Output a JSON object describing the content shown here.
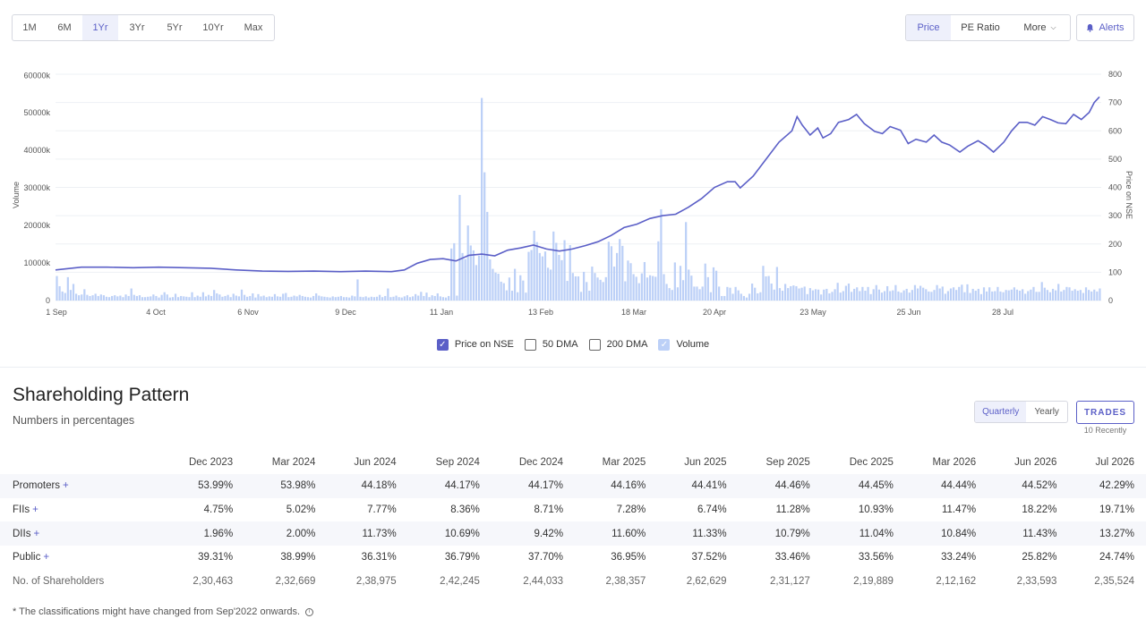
{
  "range_buttons": [
    "1M",
    "6M",
    "1Yr",
    "3Yr",
    "5Yr",
    "10Yr",
    "Max"
  ],
  "active_range": "1Yr",
  "view_buttons": {
    "price": "Price",
    "pe_ratio": "PE Ratio",
    "more": "More"
  },
  "alerts_label": "Alerts",
  "legend": {
    "price": "Price on NSE",
    "dma50": "50 DMA",
    "dma200": "200 DMA",
    "volume": "Volume"
  },
  "colors": {
    "accent": "#5b5fc7",
    "price_line": "#5b5fc7",
    "volume_bar": "#bcd0f7"
  },
  "chart_data": {
    "type": "line",
    "ylabel_left": "Volume",
    "ylabel_right": "Price on NSE",
    "left_ticks": [
      "0",
      "10000k",
      "20000k",
      "30000k",
      "40000k",
      "50000k",
      "60000k"
    ],
    "right_ticks": [
      "0",
      "100",
      "200",
      "300",
      "400",
      "500",
      "600",
      "700",
      "800"
    ],
    "x_ticks": [
      "1 Sep",
      "4 Oct",
      "6 Nov",
      "9 Dec",
      "11 Jan",
      "13 Feb",
      "18 Mar",
      "20 Apr",
      "23 May",
      "25 Jun",
      "28 Jul"
    ],
    "ylim_left": [
      0,
      60000
    ],
    "ylim_right": [
      0,
      800
    ],
    "grid": true,
    "price_series": {
      "name": "Price on NSE",
      "points": [
        [
          0,
          108
        ],
        [
          10,
          118
        ],
        [
          20,
          118
        ],
        [
          30,
          116
        ],
        [
          40,
          118
        ],
        [
          50,
          116
        ],
        [
          60,
          114
        ],
        [
          70,
          108
        ],
        [
          80,
          104
        ],
        [
          90,
          103
        ],
        [
          100,
          104
        ],
        [
          110,
          102
        ],
        [
          120,
          104
        ],
        [
          130,
          102
        ],
        [
          135,
          108
        ],
        [
          140,
          132
        ],
        [
          145,
          145
        ],
        [
          150,
          148
        ],
        [
          155,
          140
        ],
        [
          160,
          160
        ],
        [
          165,
          164
        ],
        [
          170,
          158
        ],
        [
          175,
          178
        ],
        [
          180,
          186
        ],
        [
          185,
          196
        ],
        [
          190,
          182
        ],
        [
          195,
          175
        ],
        [
          200,
          182
        ],
        [
          205,
          194
        ],
        [
          210,
          208
        ],
        [
          215,
          230
        ],
        [
          220,
          258
        ],
        [
          225,
          270
        ],
        [
          230,
          290
        ],
        [
          235,
          300
        ],
        [
          240,
          305
        ],
        [
          245,
          330
        ],
        [
          250,
          360
        ],
        [
          255,
          400
        ],
        [
          260,
          420
        ],
        [
          263,
          420
        ],
        [
          265,
          398
        ],
        [
          270,
          440
        ],
        [
          275,
          500
        ],
        [
          280,
          560
        ],
        [
          285,
          600
        ],
        [
          287,
          650
        ],
        [
          289,
          620
        ],
        [
          292,
          585
        ],
        [
          295,
          610
        ],
        [
          297,
          575
        ],
        [
          300,
          590
        ],
        [
          303,
          630
        ],
        [
          307,
          640
        ],
        [
          310,
          658
        ],
        [
          313,
          625
        ],
        [
          317,
          598
        ],
        [
          320,
          590
        ],
        [
          323,
          615
        ],
        [
          327,
          602
        ],
        [
          330,
          555
        ],
        [
          333,
          570
        ],
        [
          337,
          560
        ],
        [
          340,
          585
        ],
        [
          343,
          560
        ],
        [
          346,
          550
        ],
        [
          350,
          525
        ],
        [
          353,
          545
        ],
        [
          357,
          565
        ],
        [
          360,
          548
        ],
        [
          363,
          525
        ],
        [
          367,
          560
        ],
        [
          370,
          600
        ],
        [
          373,
          630
        ],
        [
          376,
          630
        ],
        [
          379,
          620
        ],
        [
          382,
          650
        ],
        [
          385,
          640
        ],
        [
          388,
          628
        ],
        [
          391,
          625
        ],
        [
          394,
          658
        ],
        [
          397,
          640
        ],
        [
          400,
          665
        ],
        [
          402,
          700
        ],
        [
          404,
          720
        ]
      ],
      "date_range": [
        "1 Sep",
        "28 Jul"
      ],
      "note_on_points": "x = trading-day index along the 1Yr window; y = price in INR"
    },
    "volume_series": {
      "name": "Volume",
      "unit": "k",
      "values": [
        6500,
        3800,
        2400,
        2000,
        6200,
        2800,
        4400,
        1800,
        1400,
        1600,
        3000,
        1500,
        1200,
        1400,
        1800,
        1200,
        1600,
        1400,
        1000,
        900,
        1200,
        1400,
        1100,
        1300,
        900,
        1600,
        1200,
        3200,
        1500,
        1200,
        1400,
        900,
        900,
        1000,
        1100,
        1600,
        1200,
        800,
        1500,
        2200,
        1600,
        800,
        900,
        1800,
        900,
        1200,
        1100,
        1000,
        900,
        2200,
        900,
        1300,
        1000,
        2200,
        1100,
        1500,
        1200,
        2800,
        1900,
        1600,
        1000,
        1200,
        1500,
        900,
        1800,
        1300,
        1100,
        2900,
        1500,
        1000,
        1200,
        1900,
        800,
        1700,
        1100,
        1300,
        900,
        1100,
        1000,
        1700,
        1100,
        1000,
        1800,
        2000,
        900,
        1000,
        1300,
        1100,
        1500,
        1200,
        1000,
        900,
        800,
        1200,
        1900,
        1300,
        1100,
        1000,
        900,
        800,
        1100,
        900,
        1000,
        1200,
        900,
        900,
        800,
        1300,
        1100,
        5600,
        1000,
        900,
        1100,
        800,
        1000,
        900,
        1000,
        1500,
        900,
        1200,
        3200,
        900,
        1000,
        1300,
        900,
        800,
        1100,
        1400,
        900,
        1100,
        1700,
        1300,
        2300,
        1200,
        2100,
        900,
        1400,
        1200,
        1900,
        1100,
        900,
        800,
        1200,
        13800,
        15200,
        1300,
        28000,
        12600,
        11000,
        19900,
        14600,
        13300,
        9400,
        11900,
        53700,
        34000,
        23500,
        10900,
        8400,
        7400,
        7100,
        5000,
        4600,
        2700,
        6100,
        2600,
        8400,
        2200,
        6700,
        5300,
        2100,
        12900,
        13400,
        18500,
        15500,
        12600,
        11700,
        13000,
        8700,
        8200,
        18300,
        15300,
        12100,
        10700,
        16000,
        5200,
        14700,
        7300,
        6400,
        6400,
        2300,
        7600,
        4900,
        2600,
        9000,
        7300,
        6100,
        5500,
        4900,
        6200,
        15600,
        14400,
        9000,
        12600,
        16300,
        14500,
        5100,
        10600,
        9900,
        7000,
        6300,
        4600,
        7200,
        10200,
        6100,
        6700,
        6500,
        6300,
        15700,
        24200,
        7000,
        4400,
        3300,
        2800,
        10100,
        3500,
        9200,
        5400,
        20800,
        8200,
        6600,
        3700,
        3700,
        3000,
        3700,
        9800,
        6200,
        2200,
        8800,
        7900,
        3700,
        1200,
        1200,
        3600,
        3400,
        1800,
        3600,
        2700,
        1800,
        1200,
        800,
        1800,
        4500,
        3400,
        1900,
        2200,
        9200,
        6400,
        6500,
        4500,
        2900,
        8900,
        3300,
        2600,
        4400,
        3300,
        3800,
        4000,
        3800,
        3200,
        3400,
        3700,
        1700,
        3300,
        2700,
        3000,
        2900,
        1600,
        2900,
        3100,
        1900,
        2300,
        3000,
        4700,
        2100,
        2500,
        3900,
        4500,
        2300,
        3100,
        3500,
        2500,
        3600,
        2600,
        3600,
        1700,
        3000,
        4100,
        2900,
        2100,
        2500,
        3800,
        2500,
        2700,
        4100,
        2400,
        2100,
        2700,
        3100,
        2100,
        2800,
        4100,
        3200,
        3900,
        3400,
        3000,
        2400,
        2300,
        2800,
        4100,
        3200,
        3700,
        1800,
        2500,
        3200,
        3500,
        2800,
        3600,
        4200,
        2200,
        4300,
        2000,
        3100,
        2600,
        3100,
        1700,
        3500,
        2400,
        3500,
        2400,
        2500,
        3600,
        2400,
        2200,
        2800,
        2700,
        2900,
        3500,
        2900,
        2600,
        3000,
        1800,
        2500,
        2900,
        3600,
        2300,
        2300,
        4900,
        3400,
        2800,
        2200,
        3100,
        2700,
        4400,
        2400,
        2800,
        3600,
        3500,
        2600,
        3000,
        2600,
        2800,
        2000,
        3500,
        2800,
        2400,
        2900,
        2400,
        3200
      ]
    }
  },
  "shareholding": {
    "title": "Shareholding Pattern",
    "subtitle": "Numbers in percentages",
    "toggle": [
      "Quarterly",
      "Yearly"
    ],
    "active_toggle": "Quarterly",
    "trades_label": "TRADES",
    "trades_sub": "10 Recently",
    "columns": [
      "Dec 2023",
      "Mar 2024",
      "Jun 2024",
      "Sep 2024",
      "Dec 2024",
      "Mar 2025",
      "Jun 2025",
      "Sep 2025",
      "Dec 2025",
      "Mar 2026",
      "Jun 2026",
      "Jul 2026"
    ],
    "rows": [
      {
        "label": "Promoters",
        "plus": "+",
        "values": [
          "53.99%",
          "53.98%",
          "44.18%",
          "44.17%",
          "44.17%",
          "44.16%",
          "44.41%",
          "44.46%",
          "44.45%",
          "44.44%",
          "44.52%",
          "42.29%"
        ]
      },
      {
        "label": "FIIs",
        "plus": "+",
        "values": [
          "4.75%",
          "5.02%",
          "7.77%",
          "8.36%",
          "8.71%",
          "7.28%",
          "6.74%",
          "11.28%",
          "10.93%",
          "11.47%",
          "18.22%",
          "19.71%"
        ]
      },
      {
        "label": "DIIs",
        "plus": "+",
        "values": [
          "1.96%",
          "2.00%",
          "11.73%",
          "10.69%",
          "9.42%",
          "11.60%",
          "11.33%",
          "10.79%",
          "11.04%",
          "10.84%",
          "11.43%",
          "13.27%"
        ]
      },
      {
        "label": "Public",
        "plus": "+",
        "values": [
          "39.31%",
          "38.99%",
          "36.31%",
          "36.79%",
          "37.70%",
          "36.95%",
          "37.52%",
          "33.46%",
          "33.56%",
          "33.24%",
          "25.82%",
          "24.74%"
        ]
      },
      {
        "label": "No. of Shareholders",
        "plus": "",
        "values": [
          "2,30,463",
          "2,32,669",
          "2,38,975",
          "2,42,245",
          "2,44,033",
          "2,38,357",
          "2,62,629",
          "2,31,127",
          "2,19,889",
          "2,12,162",
          "2,33,593",
          "2,35,524"
        ]
      }
    ],
    "footnote": "* The classifications might have changed from Sep'2022 onwards."
  }
}
